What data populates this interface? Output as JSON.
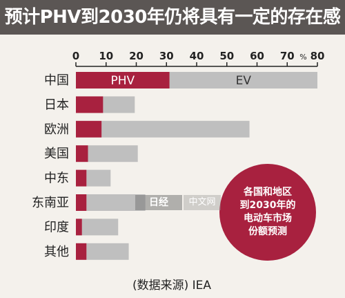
{
  "header": {
    "title": "预计PHV到2030年仍将具有一定的存在感"
  },
  "chart_data": {
    "type": "bar",
    "orientation": "horizontal",
    "stacked": true,
    "categories": [
      "中国",
      "日本",
      "欧洲",
      "美国",
      "中东",
      "东南亚",
      "印度",
      "其他"
    ],
    "series": [
      {
        "name": "PHV",
        "values": [
          31,
          9,
          8.5,
          4,
          3.5,
          3.5,
          2,
          3.5
        ]
      },
      {
        "name": "EV",
        "values": [
          49,
          10.5,
          49,
          16.5,
          8,
          19.5,
          12,
          14
        ]
      }
    ],
    "x_ticks": [
      "0",
      "10",
      "20",
      "30",
      "40",
      "50",
      "60",
      "70",
      "80"
    ],
    "x_unit": "%",
    "xlim": [
      0,
      80
    ],
    "title": "",
    "xlabel": "",
    "ylabel": "",
    "grid": false,
    "colors": {
      "PHV": "#a8213f",
      "EV": "#bfbfbf"
    }
  },
  "callout": {
    "text": "各国和地区\n到2030年的\n电动车市场\n份额预测"
  },
  "source": {
    "text": "(数据来源) IEA"
  },
  "watermark": {
    "logo": "日经",
    "label": "中文网"
  },
  "theme": {
    "header_bg": "#5b5654",
    "background": "#f4f1ec",
    "accent": "#a8213f"
  }
}
